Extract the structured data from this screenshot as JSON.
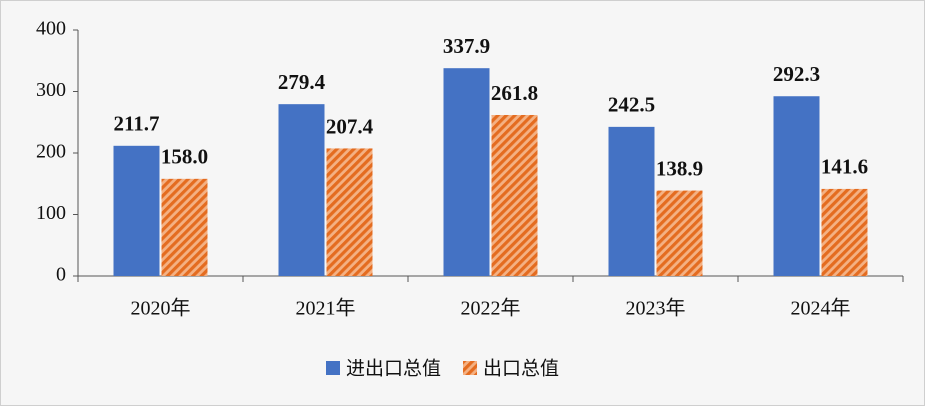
{
  "chart_data": {
    "type": "bar",
    "categories": [
      "2020年",
      "2021年",
      "2022年",
      "2023年",
      "2024年"
    ],
    "series": [
      {
        "name": "进出口总值",
        "color": "#4472c4",
        "values": [
          211.7,
          279.4,
          337.9,
          242.5,
          292.3
        ],
        "value_labels": [
          "211.7",
          "279.4",
          "337.9",
          "242.5",
          "292.3"
        ]
      },
      {
        "name": "出口总值",
        "color": "#ed7d31",
        "values": [
          158.0,
          207.4,
          261.8,
          138.9,
          141.6
        ],
        "value_labels": [
          "158.0",
          "207.4",
          "261.8",
          "138.9",
          "141.6"
        ],
        "hatch": true
      }
    ],
    "ylim": [
      0,
      400
    ],
    "yticks": [
      0,
      100,
      200,
      300,
      400
    ],
    "grid": false,
    "legend": "bottom"
  }
}
